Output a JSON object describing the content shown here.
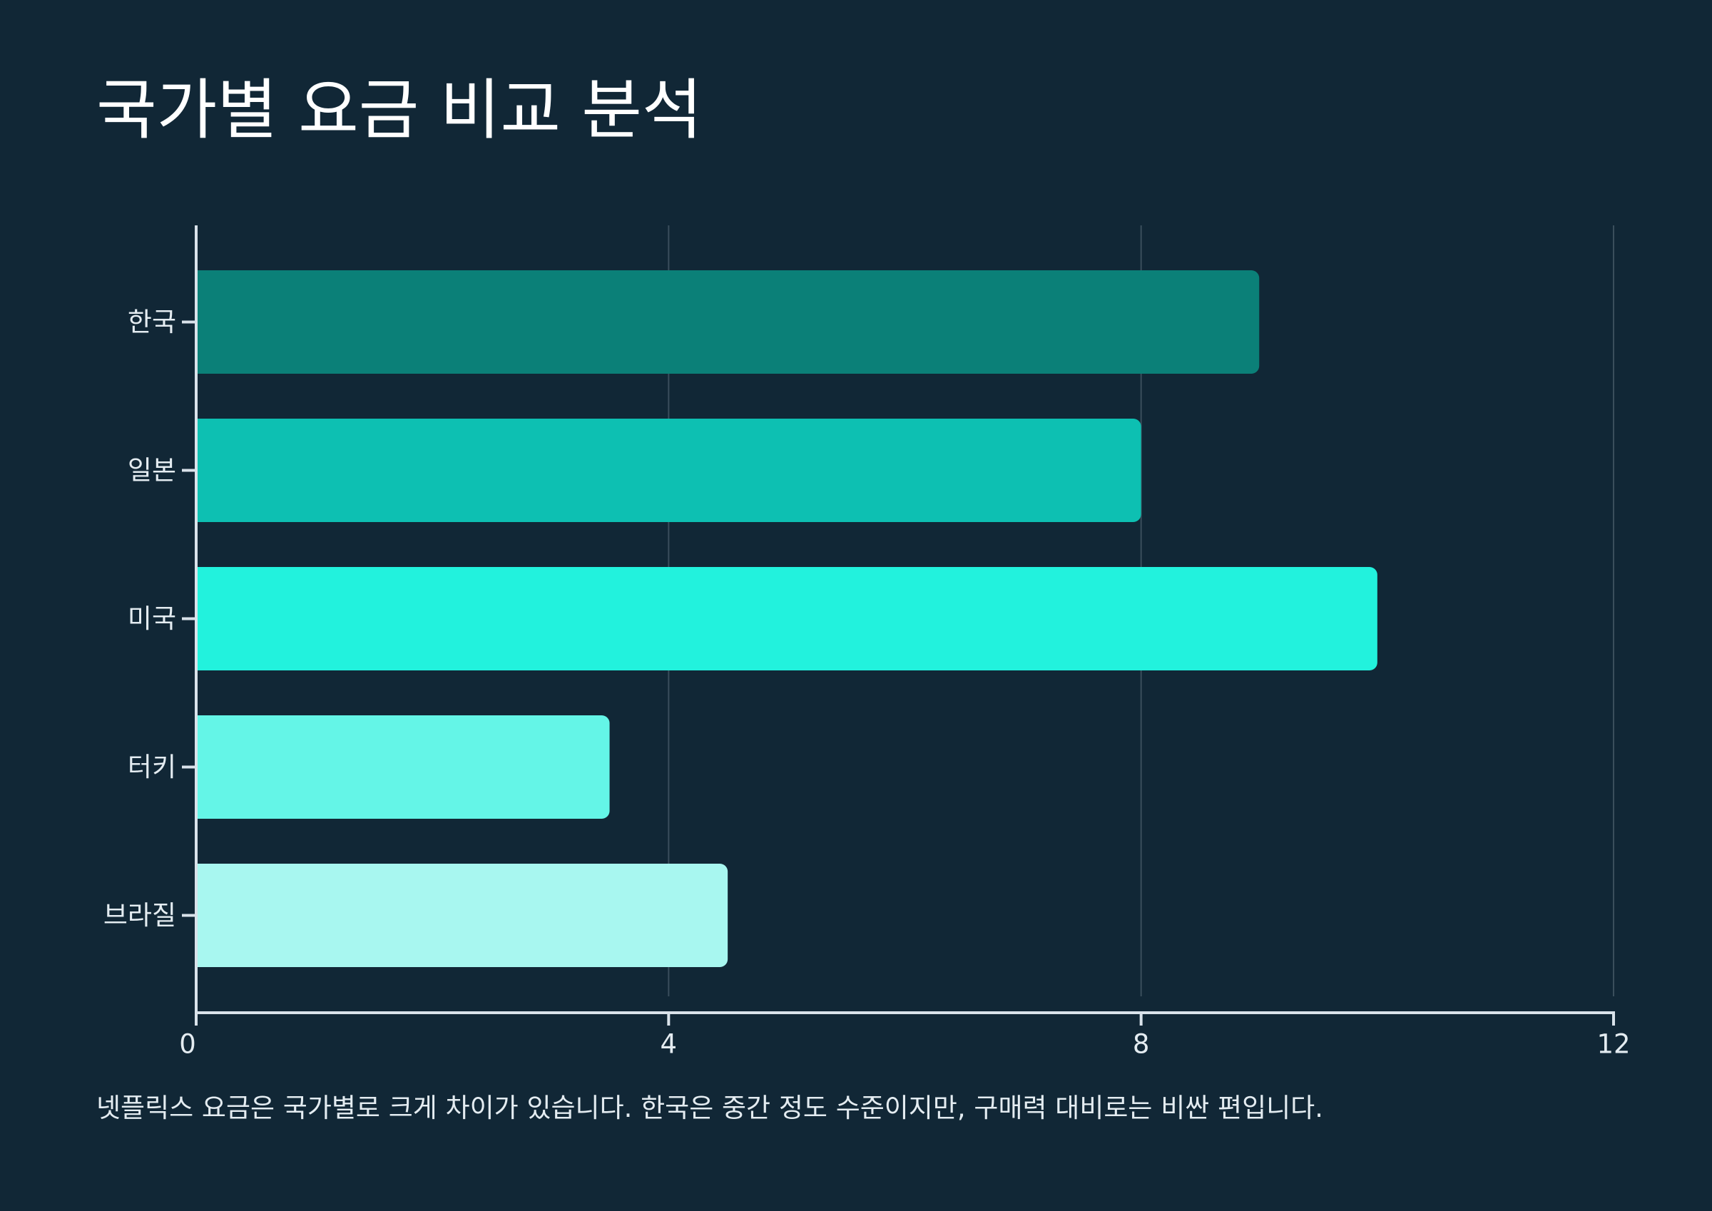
{
  "title": "국가별 요금 비교 분석",
  "caption": "넷플릭스 요금은 국가별로 크게 차이가 있습니다. 한국은 중간 정도 수준이지만, 구매력 대비로는 비싼 편입니다.",
  "colors": {
    "background": "#112736",
    "axis": "#d9e2ea",
    "grid": "#3a4e5c",
    "text": "#e4ecf1"
  },
  "chart_data": {
    "type": "bar",
    "orientation": "horizontal",
    "categories": [
      "한국",
      "일본",
      "미국",
      "터키",
      "브라질"
    ],
    "values": [
      9,
      8,
      10,
      3.5,
      4.5
    ],
    "bar_colors": [
      "#0b8078",
      "#0dc0b2",
      "#22f2dd",
      "#64f5e7",
      "#a8f7f0"
    ],
    "xlim": [
      0,
      12
    ],
    "xticks": [
      0,
      4,
      8,
      12
    ],
    "grid": true,
    "legend": "none"
  }
}
